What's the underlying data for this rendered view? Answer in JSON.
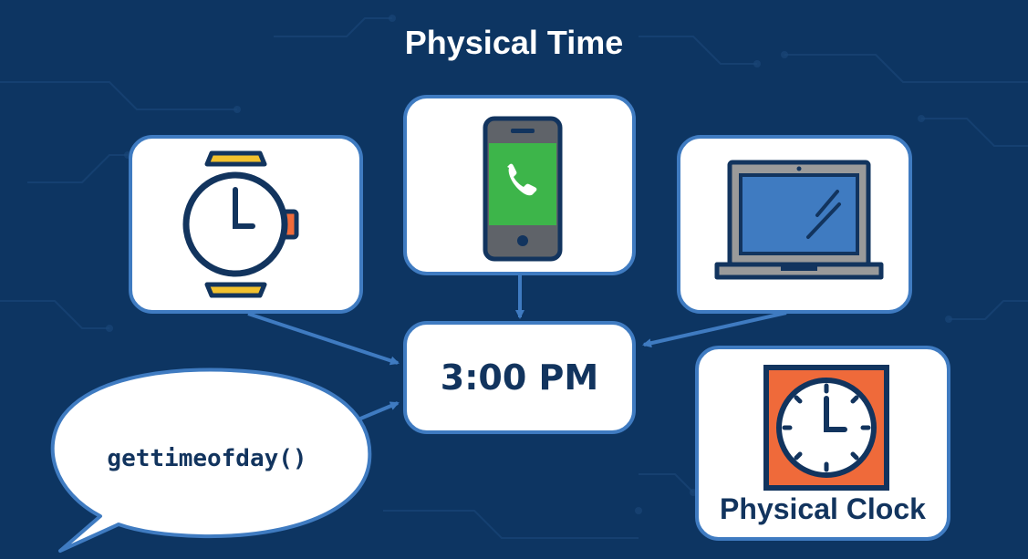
{
  "title": "Physical Time",
  "center_box": {
    "time": "3:00 PM"
  },
  "speech_bubble": {
    "text": "gettimeofday()"
  },
  "clock_box": {
    "label": "Physical Clock"
  },
  "devices": [
    {
      "name": "wristwatch",
      "icon": "watch-icon"
    },
    {
      "name": "smartphone",
      "icon": "phone-icon"
    },
    {
      "name": "laptop",
      "icon": "laptop-icon"
    },
    {
      "name": "wall clock",
      "icon": "wall-clock-icon"
    }
  ],
  "colors": {
    "background": "#0d3562",
    "box_border": "#3f7bc1",
    "arrow": "#3f7bc1",
    "text_dark": "#12345e",
    "watch_band": "#f2c12e",
    "watch_crown": "#f06b3a",
    "phone_screen": "#3db54a",
    "phone_body": "#5f6369",
    "laptop_screen": "#3f7bc1",
    "laptop_body": "#9a9a9a",
    "clock_frame": "#ef6a3a"
  }
}
